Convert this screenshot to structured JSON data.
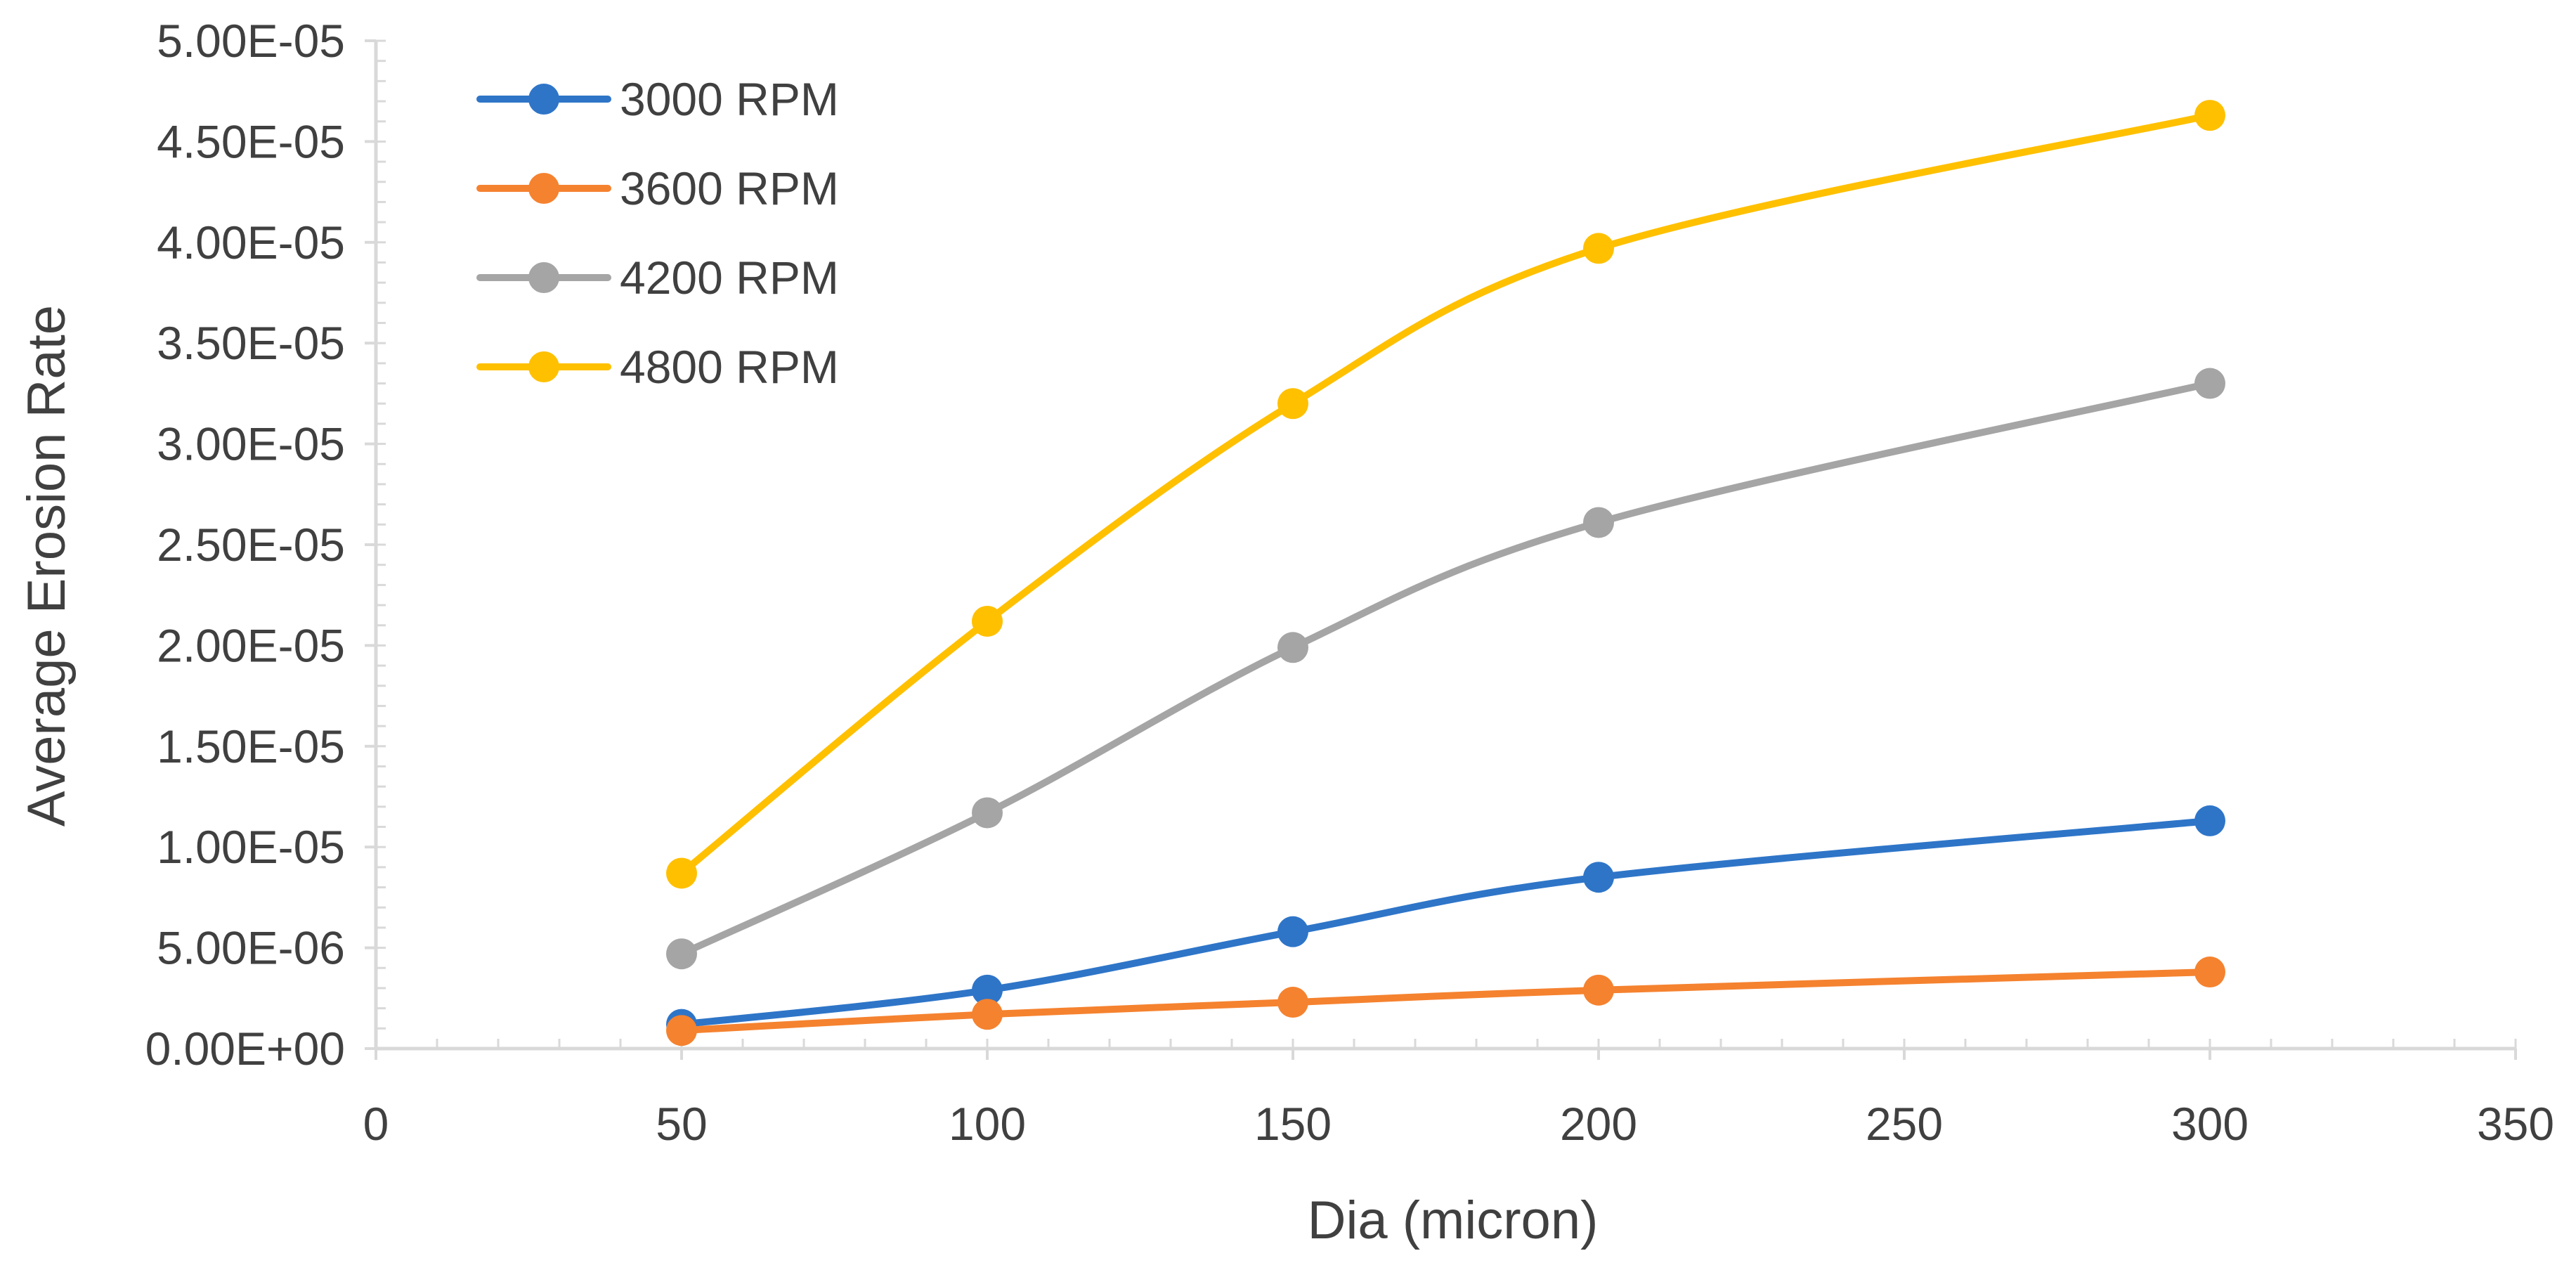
{
  "chart_data": {
    "type": "line",
    "title": "",
    "xlabel": "Dia (micron)",
    "ylabel": "Average Erosion Rate",
    "xlim": [
      0,
      350
    ],
    "ylim": [
      0,
      5e-05
    ],
    "x_ticks": [
      0,
      50,
      100,
      150,
      200,
      250,
      300,
      350
    ],
    "x_tick_labels": [
      "0",
      "50",
      "100",
      "150",
      "200",
      "250",
      "300",
      "350"
    ],
    "y_ticks": [
      0,
      5e-06,
      1e-05,
      1.5e-05,
      2e-05,
      2.5e-05,
      3e-05,
      3.5e-05,
      4e-05,
      4.5e-05,
      5e-05
    ],
    "y_tick_labels": [
      "0.00E+00",
      "5.00E-06",
      "1.00E-05",
      "1.50E-05",
      "2.00E-05",
      "2.50E-05",
      "3.00E-05",
      "3.50E-05",
      "4.00E-05",
      "4.50E-05",
      "5.00E-05"
    ],
    "grid": false,
    "smooth": true,
    "markers": "circle",
    "legend_position": "top-left",
    "x": [
      50,
      100,
      150,
      200,
      300
    ],
    "series": [
      {
        "name": "3000 RPM",
        "color": "#2E75C8",
        "values": [
          1.2e-06,
          2.9e-06,
          5.8e-06,
          8.5e-06,
          1.13e-05
        ]
      },
      {
        "name": "3600 RPM",
        "color": "#F5822F",
        "values": [
          9e-07,
          1.7e-06,
          2.3e-06,
          2.9e-06,
          3.8e-06
        ]
      },
      {
        "name": "4200 RPM",
        "color": "#A5A5A5",
        "values": [
          4.7e-06,
          1.17e-05,
          1.99e-05,
          2.61e-05,
          3.3e-05
        ]
      },
      {
        "name": "4800 RPM",
        "color": "#FFC000",
        "values": [
          8.7e-06,
          2.12e-05,
          3.2e-05,
          3.97e-05,
          4.63e-05
        ]
      }
    ],
    "axis_color": "#D9D9D9"
  }
}
